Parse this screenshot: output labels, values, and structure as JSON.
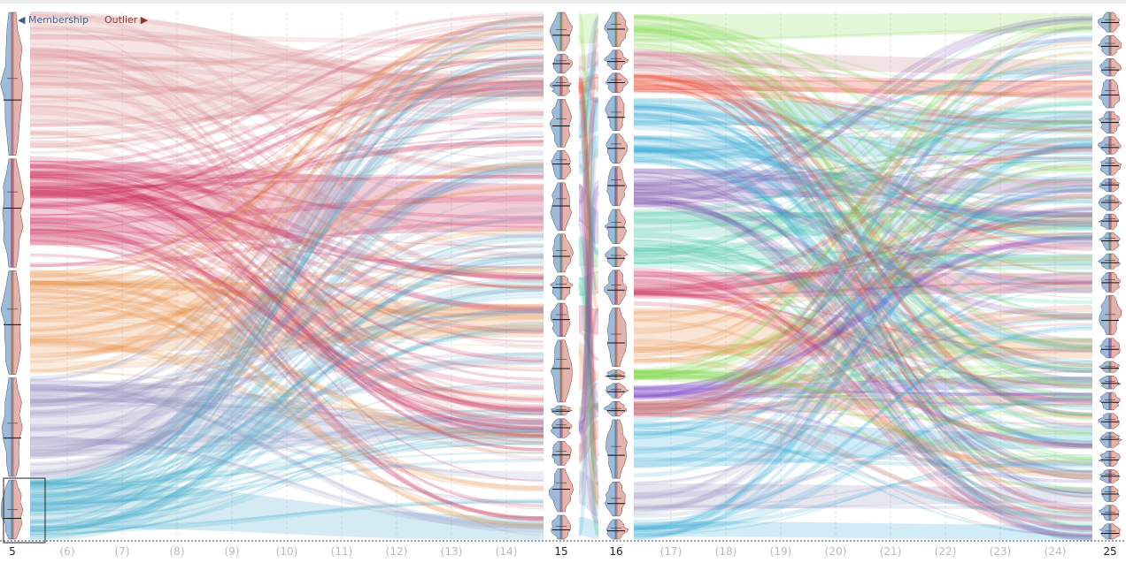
{
  "legend": {
    "membership_label": "◀ Membership",
    "outlier_label": "Outlier ▶",
    "membership_color": "#3f5f86",
    "outlier_color": "#8a3b33"
  },
  "chart_data": {
    "type": "sankey",
    "title": "",
    "xlabel": "",
    "ylabel": "",
    "axis_ticks": [
      "5",
      "(6)",
      "(7)",
      "(8)",
      "(9)",
      "(10)",
      "(11)",
      "(12)",
      "(13)",
      "(14)",
      "15",
      "16",
      "(17)",
      "(18)",
      "(19)",
      "(20)",
      "(21)",
      "(22)",
      "(23)",
      "(24)",
      "25"
    ],
    "grid": true,
    "selected_cluster": {
      "k": 5,
      "index": 4
    },
    "levels": [
      {
        "k": 5,
        "cluster_colors": [
          "#d6858a",
          "#c8174a",
          "#e68a3e",
          "#8f8fbd",
          "#3aa6c9"
        ],
        "cluster_weights": [
          0.29,
          0.22,
          0.21,
          0.2,
          0.12
        ]
      },
      {
        "k": 15,
        "cluster_colors": [
          "#7fd64a",
          "#c97a86",
          "#e8301c",
          "#2fa8d4",
          "#2fa8d4",
          "#6a3fa0",
          "#3fc4a0",
          "#3fc4a0",
          "#c8174a",
          "#e68a3e",
          "#7fd64a",
          "#7b43c7",
          "#c46a72",
          "#8f8fbd",
          "#2fa8d4"
        ],
        "cluster_weights": [
          0.08,
          0.04,
          0.04,
          0.1,
          0.06,
          0.1,
          0.08,
          0.05,
          0.07,
          0.13,
          0.02,
          0.04,
          0.05,
          0.09,
          0.05
        ]
      },
      {
        "k": 16,
        "cluster_colors": [
          "#7fd64a",
          "#c97a86",
          "#e8301c",
          "#2fa8d4",
          "#2fa8d4",
          "#6a3fa0",
          "#3fc4a0",
          "#3fc4a0",
          "#c8174a",
          "#e68a3e",
          "#7fd64a",
          "#7b43c7",
          "#c46a72",
          "#2fa8d4",
          "#8f8fbd",
          "#2fa8d4"
        ],
        "cluster_weights": [
          0.07,
          0.04,
          0.04,
          0.07,
          0.06,
          0.08,
          0.07,
          0.04,
          0.07,
          0.12,
          0.02,
          0.03,
          0.03,
          0.12,
          0.07,
          0.04
        ]
      },
      {
        "k": 25,
        "cluster_colors": [
          "#7fd64a",
          "#c97a86",
          "#d6858a",
          "#d6858a",
          "#8f8fbd",
          "#e8301c",
          "#2fa8d4",
          "#2222d0",
          "#2fa8d4",
          "#6a3fa0",
          "#3fc4a0",
          "#3fc4a0",
          "#c8174a",
          "#e68a3e",
          "#5533e0",
          "#7fd64a",
          "#7b43c7",
          "#5a5aa0",
          "#3a8fc0",
          "#2fa8d4",
          "#8f8fbd",
          "#c8174a",
          "#2fa8d4",
          "#8f8fbd",
          "#2fa8d4"
        ],
        "cluster_weights": [
          0.045,
          0.045,
          0.04,
          0.065,
          0.05,
          0.04,
          0.04,
          0.03,
          0.035,
          0.035,
          0.04,
          0.035,
          0.045,
          0.09,
          0.045,
          0.025,
          0.03,
          0.04,
          0.035,
          0.035,
          0.035,
          0.03,
          0.035,
          0.035,
          0.035
        ]
      }
    ]
  }
}
